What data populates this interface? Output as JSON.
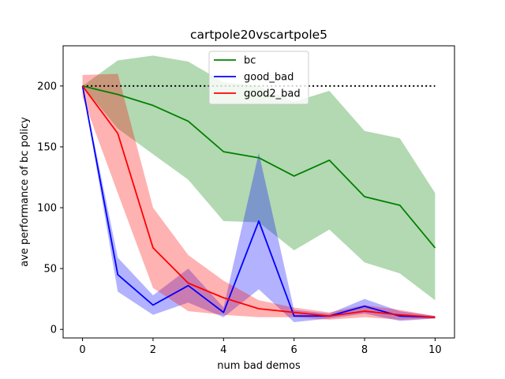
{
  "chart_data": {
    "type": "line",
    "title": "cartpole20vscartpole5",
    "xlabel": "num bad demos",
    "ylabel": "ave performance of bc policy",
    "xlim": [
      -0.55,
      10.55
    ],
    "ylim": [
      -7,
      233
    ],
    "xticks": [
      0,
      2,
      4,
      6,
      8,
      10
    ],
    "yticks": [
      0,
      50,
      100,
      150,
      200
    ],
    "grid": false,
    "legend_position": "top-center",
    "reference_line": {
      "y": 200,
      "x_start": 0,
      "x_end": 10,
      "style": "dotted",
      "color": "#000000"
    },
    "series": [
      {
        "name": "bc",
        "color": "#008000",
        "x": [
          0,
          1,
          2,
          3,
          4,
          5,
          6,
          7,
          8,
          9,
          10
        ],
        "values": [
          200,
          193,
          184,
          171,
          146,
          141,
          126,
          139,
          109,
          102,
          67
        ],
        "upper": [
          200,
          221,
          225,
          220,
          203,
          200,
          187,
          196,
          163,
          157,
          112
        ],
        "lower": [
          200,
          165,
          144,
          123,
          89,
          88,
          65,
          82,
          55,
          46,
          24
        ]
      },
      {
        "name": "good_bad",
        "color": "#0000ff",
        "x": [
          0,
          1,
          2,
          3,
          4,
          5,
          6,
          7,
          8,
          9,
          10
        ],
        "values": [
          200,
          45,
          20,
          36,
          14,
          89,
          11,
          11,
          19,
          11,
          10
        ],
        "upper": [
          200,
          59,
          28,
          50,
          18,
          145,
          16,
          13,
          25,
          15,
          11
        ],
        "lower": [
          200,
          31,
          12,
          22,
          10,
          33,
          6,
          9,
          13,
          7,
          9
        ]
      },
      {
        "name": "good2_bad",
        "color": "#ff0000",
        "x": [
          0,
          1,
          2,
          3,
          4,
          5,
          6,
          7,
          8,
          9,
          10
        ],
        "values": [
          200,
          161,
          67,
          38,
          26,
          17,
          14,
          11,
          15,
          12,
          10
        ],
        "upper": [
          209,
          210,
          100,
          61,
          40,
          24,
          18,
          14,
          20,
          16,
          11
        ],
        "lower": [
          191,
          112,
          34,
          15,
          12,
          10,
          10,
          8,
          10,
          8,
          9
        ]
      }
    ]
  }
}
